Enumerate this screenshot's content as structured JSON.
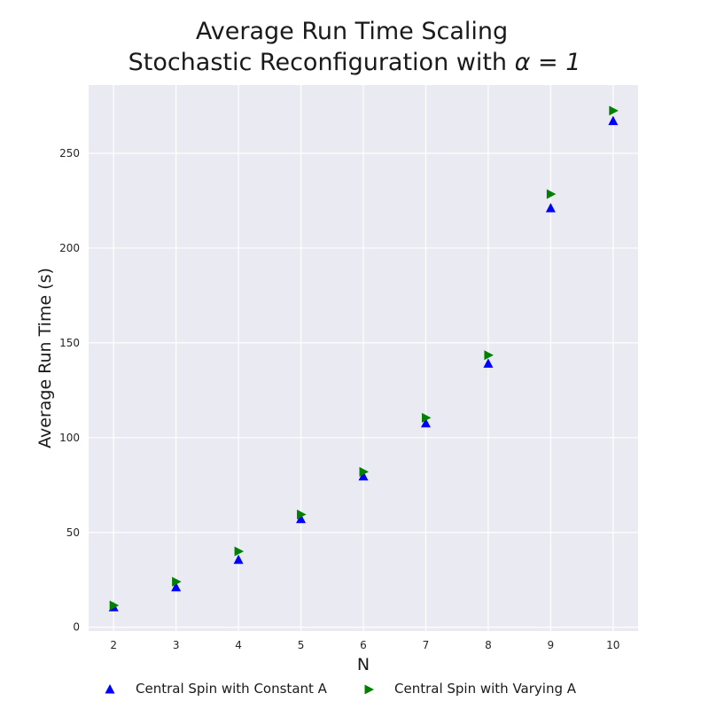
{
  "chart_data": {
    "type": "scatter",
    "title": "Average Run Time Scaling",
    "subtitle_prefix": "Stochastic Reconfiguration with ",
    "subtitle_math": "α = 1",
    "xlabel": "N",
    "ylabel": "Average Run Time (s)",
    "x": [
      2,
      3,
      4,
      5,
      6,
      7,
      8,
      9,
      10
    ],
    "xlim": [
      1.6,
      10.4
    ],
    "ylim": [
      -2,
      286
    ],
    "xticks": [
      2,
      3,
      4,
      5,
      6,
      7,
      8,
      9,
      10
    ],
    "yticks": [
      0,
      50,
      100,
      150,
      200,
      250
    ],
    "grid": true,
    "legend_position": "bottom",
    "series": [
      {
        "name": "Central Spin with Constant A",
        "marker": "triangle-up",
        "color": "#0000ff",
        "values": [
          10.5,
          21,
          35.5,
          57,
          79.5,
          107.5,
          139,
          221,
          267
        ]
      },
      {
        "name": "Central Spin with Varying A",
        "marker": "triangle-right",
        "color": "#008000",
        "values": [
          11.5,
          24,
          40,
          59.5,
          82,
          110.5,
          143.5,
          228.5,
          272.5
        ]
      }
    ]
  },
  "colors": {
    "plot_background": "#eaeaf2",
    "grid": "#ffffff",
    "text": "#1a1a1a"
  }
}
